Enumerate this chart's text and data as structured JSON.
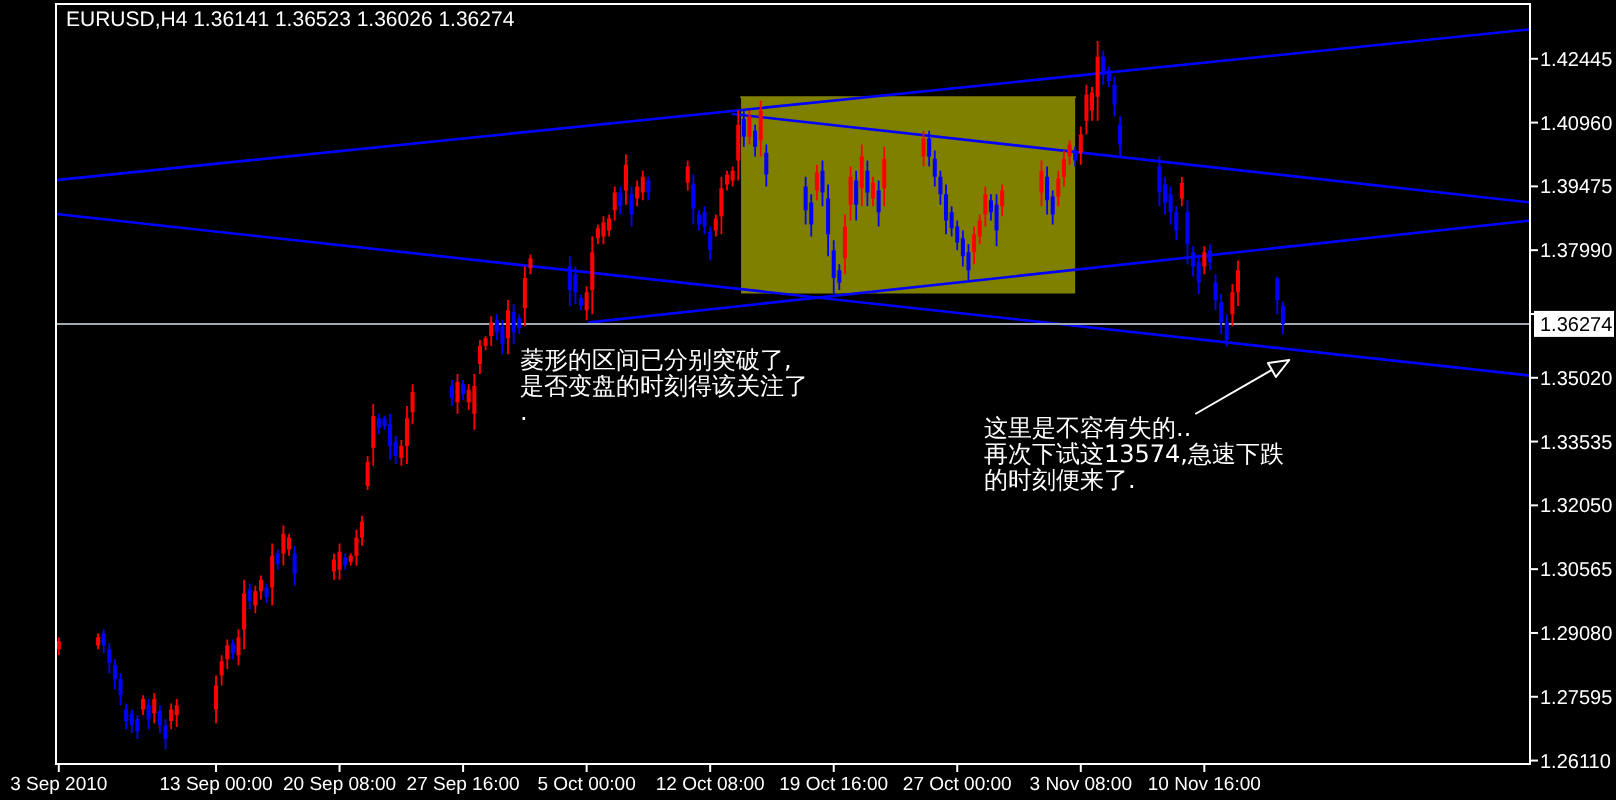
{
  "chart_data": {
    "type": "candlestick",
    "title": "EURUSD,H4 1.36141 1.36523 1.36026 1.36274",
    "xlim": [
      "2010-09-03T12:00",
      "2010-11-30T00:00"
    ],
    "ylim": [
      1.2603,
      1.4372
    ],
    "xticks": [
      {
        "value": "2010-09-03T16:00",
        "label": "3 Sep 2010"
      },
      {
        "value": "2010-09-13T00:00",
        "label": "13 Sep 00:00"
      },
      {
        "value": "2010-09-20T08:00",
        "label": "20 Sep 08:00"
      },
      {
        "value": "2010-09-27T16:00",
        "label": "27 Sep 16:00"
      },
      {
        "value": "2010-10-05T00:00",
        "label": "5 Oct 00:00"
      },
      {
        "value": "2010-10-12T08:00",
        "label": "12 Oct 08:00"
      },
      {
        "value": "2010-10-19T16:00",
        "label": "19 Oct 16:00"
      },
      {
        "value": "2010-10-27T00:00",
        "label": "27 Oct 00:00"
      },
      {
        "value": "2010-11-03T08:00",
        "label": "3 Nov 08:00"
      },
      {
        "value": "2010-11-10T16:00",
        "label": "10 Nov 16:00"
      }
    ],
    "yticks": [
      {
        "value": 1.2611,
        "label": "1.26110"
      },
      1.27595,
      {
        "value": 1.2908,
        "label": "1.29080"
      },
      1.30565,
      {
        "value": 1.3205,
        "label": "1.32050"
      },
      1.33535,
      {
        "value": 1.3502,
        "label": "1.35020"
      },
      {
        "value": 1.36505,
        "label": null
      },
      {
        "value": 1.3799,
        "label": "1.37990"
      },
      1.39475,
      {
        "value": 1.4096,
        "label": "1.40960"
      },
      1.42445
    ],
    "x": [
      "2010-09-03T16:00",
      "2010-09-06T00:00",
      "2010-09-06T08:00",
      "2010-09-06T16:00",
      "2010-09-07T00:00",
      "2010-09-07T08:00",
      "2010-09-07T16:00",
      "2010-09-08T00:00",
      "2010-09-08T08:00",
      "2010-09-08T16:00",
      "2010-09-09T00:00",
      "2010-09-09T08:00",
      "2010-09-09T16:00",
      "2010-09-10T00:00",
      "2010-09-10T08:00",
      "2010-09-10T16:00",
      "2010-09-13T00:00",
      "2010-09-13T08:00",
      "2010-09-13T16:00",
      "2010-09-14T00:00",
      "2010-09-14T08:00",
      "2010-09-14T16:00",
      "2010-09-15T00:00",
      "2010-09-15T08:00",
      "2010-09-15T16:00",
      "2010-09-16T00:00",
      "2010-09-16T08:00",
      "2010-09-16T16:00",
      "2010-09-17T00:00",
      "2010-09-17T08:00",
      "2010-09-17T16:00",
      "2010-09-20T00:00",
      "2010-09-20T08:00",
      "2010-09-20T16:00",
      "2010-09-21T00:00",
      "2010-09-21T08:00",
      "2010-09-21T16:00",
      "2010-09-22T00:00",
      "2010-09-22T08:00",
      "2010-09-22T16:00",
      "2010-09-23T00:00",
      "2010-09-23T08:00",
      "2010-09-23T16:00",
      "2010-09-24T00:00",
      "2010-09-24T08:00",
      "2010-09-24T16:00",
      "2010-09-27T00:00",
      "2010-09-27T08:00",
      "2010-09-27T16:00",
      "2010-09-28T00:00",
      "2010-09-28T08:00",
      "2010-09-28T16:00",
      "2010-09-29T00:00",
      "2010-09-29T08:00",
      "2010-09-29T16:00",
      "2010-09-30T00:00",
      "2010-09-30T08:00",
      "2010-09-30T16:00",
      "2010-10-01T00:00",
      "2010-10-01T08:00",
      "2010-10-01T16:00",
      "2010-10-04T00:00",
      "2010-10-04T08:00",
      "2010-10-04T16:00",
      "2010-10-05T00:00",
      "2010-10-05T08:00",
      "2010-10-05T16:00",
      "2010-10-06T00:00",
      "2010-10-06T08:00",
      "2010-10-06T16:00",
      "2010-10-07T00:00",
      "2010-10-07T08:00",
      "2010-10-07T16:00",
      "2010-10-08T00:00",
      "2010-10-08T08:00",
      "2010-10-08T16:00",
      "2010-10-11T00:00",
      "2010-10-11T08:00",
      "2010-10-11T16:00",
      "2010-10-12T00:00",
      "2010-10-12T08:00",
      "2010-10-12T16:00",
      "2010-10-13T00:00",
      "2010-10-13T08:00",
      "2010-10-13T16:00",
      "2010-10-14T00:00",
      "2010-10-14T08:00",
      "2010-10-14T16:00",
      "2010-10-15T00:00",
      "2010-10-15T08:00",
      "2010-10-15T16:00",
      "2010-10-18T00:00",
      "2010-10-18T08:00",
      "2010-10-18T16:00",
      "2010-10-19T00:00",
      "2010-10-19T08:00",
      "2010-10-19T16:00",
      "2010-10-20T00:00",
      "2010-10-20T08:00",
      "2010-10-20T16:00",
      "2010-10-21T00:00",
      "2010-10-21T08:00",
      "2010-10-21T16:00",
      "2010-10-22T00:00",
      "2010-10-22T08:00",
      "2010-10-22T16:00",
      "2010-10-25T00:00",
      "2010-10-25T08:00",
      "2010-10-25T16:00",
      "2010-10-26T00:00",
      "2010-10-26T08:00",
      "2010-10-26T16:00",
      "2010-10-27T00:00",
      "2010-10-27T08:00",
      "2010-10-27T16:00",
      "2010-10-28T00:00",
      "2010-10-28T08:00",
      "2010-10-28T16:00",
      "2010-10-29T00:00",
      "2010-10-29T08:00",
      "2010-10-29T16:00",
      "2010-11-01T00:00",
      "2010-11-01T08:00",
      "2010-11-01T16:00",
      "2010-11-02T00:00",
      "2010-11-02T08:00",
      "2010-11-02T16:00",
      "2010-11-03T00:00",
      "2010-11-03T08:00",
      "2010-11-03T16:00",
      "2010-11-04T00:00",
      "2010-11-04T08:00",
      "2010-11-04T16:00",
      "2010-11-05T00:00",
      "2010-11-05T08:00",
      "2010-11-05T16:00",
      "2010-11-08T00:00",
      "2010-11-08T08:00",
      "2010-11-08T16:00",
      "2010-11-09T00:00",
      "2010-11-09T08:00",
      "2010-11-09T16:00",
      "2010-11-10T00:00",
      "2010-11-10T08:00",
      "2010-11-10T16:00",
      "2010-11-11T00:00",
      "2010-11-11T08:00",
      "2010-11-11T16:00",
      "2010-11-12T00:00",
      "2010-11-12T08:00",
      "2010-11-12T16:00",
      "2010-11-15T00:00",
      "2010-11-15T08:00"
    ],
    "ohlc": [
      [
        1.287,
        1.2898,
        1.2856,
        1.2889
      ],
      [
        1.2879,
        1.2907,
        1.287,
        1.2898
      ],
      [
        1.2907,
        1.2916,
        1.2861,
        1.2879
      ],
      [
        1.287,
        1.2884,
        1.2814,
        1.2838
      ],
      [
        1.2833,
        1.2847,
        1.2777,
        1.28
      ],
      [
        1.28,
        1.2814,
        1.274,
        1.2763
      ],
      [
        1.273,
        1.2744,
        1.2684,
        1.2703
      ],
      [
        1.2721,
        1.273,
        1.2675,
        1.2693
      ],
      [
        1.2707,
        1.2717,
        1.2661,
        1.2679
      ],
      [
        1.273,
        1.2763,
        1.2717,
        1.2754
      ],
      [
        1.274,
        1.2754,
        1.2684,
        1.2707
      ],
      [
        1.2721,
        1.2768,
        1.2698,
        1.2754
      ],
      [
        1.2726,
        1.274,
        1.2675,
        1.2693
      ],
      [
        1.2693,
        1.2707,
        1.2637,
        1.2661
      ],
      [
        1.2703,
        1.2744,
        1.2684,
        1.273
      ],
      [
        1.2717,
        1.2754,
        1.2689,
        1.274
      ],
      [
        1.273,
        1.2809,
        1.2698,
        1.2786
      ],
      [
        1.2809,
        1.2856,
        1.2786,
        1.2842
      ],
      [
        1.2847,
        1.2893,
        1.2824,
        1.2879
      ],
      [
        1.2884,
        1.2893,
        1.2847,
        1.2861
      ],
      [
        1.2856,
        1.2916,
        1.2833,
        1.2898
      ],
      [
        1.2916,
        1.3032,
        1.287,
        1.3
      ],
      [
        1.3009,
        1.3023,
        1.2963,
        1.2982
      ],
      [
        1.2972,
        1.3018,
        1.2954,
        1.3005
      ],
      [
        1.3005,
        1.3042,
        1.2986,
        1.3032
      ],
      [
        1.3014,
        1.3023,
        1.2977,
        1.2991
      ],
      [
        1.3014,
        1.3116,
        1.2972,
        1.3088
      ],
      [
        1.3093,
        1.3102,
        1.3055,
        1.3069
      ],
      [
        1.3093,
        1.3158,
        1.3065,
        1.3139
      ],
      [
        1.3102,
        1.3139,
        1.3088,
        1.313
      ],
      [
        1.3093,
        1.3111,
        1.3018,
        1.3046
      ],
      [
        1.3051,
        1.3093,
        1.3032,
        1.3079
      ],
      [
        1.3055,
        1.3116,
        1.3032,
        1.3097
      ],
      [
        1.3083,
        1.3093,
        1.3055,
        1.3065
      ],
      [
        1.3074,
        1.3093,
        1.3065,
        1.3088
      ],
      [
        1.3088,
        1.3148,
        1.3065,
        1.313
      ],
      [
        1.313,
        1.3181,
        1.3111,
        1.3167
      ],
      [
        1.325,
        1.332,
        1.3241,
        1.3306
      ],
      [
        1.3339,
        1.3441,
        1.3297,
        1.3413
      ],
      [
        1.3408,
        1.3418,
        1.3371,
        1.3385
      ],
      [
        1.3408,
        1.3413,
        1.3381,
        1.339
      ],
      [
        1.3394,
        1.3418,
        1.3311,
        1.3343
      ],
      [
        1.3353,
        1.3367,
        1.3301,
        1.332
      ],
      [
        1.3315,
        1.3357,
        1.3297,
        1.3343
      ],
      [
        1.3343,
        1.3436,
        1.3301,
        1.3408
      ],
      [
        1.3422,
        1.3487,
        1.3394,
        1.3469
      ],
      [
        1.3483,
        1.3497,
        1.3436,
        1.3455
      ],
      [
        1.3445,
        1.3511,
        1.3418,
        1.3492
      ],
      [
        1.3487,
        1.3497,
        1.345,
        1.3464
      ],
      [
        1.3445,
        1.3487,
        1.3427,
        1.3474
      ],
      [
        1.3418,
        1.3511,
        1.3381,
        1.3483
      ],
      [
        1.3534,
        1.359,
        1.3511,
        1.3576
      ],
      [
        1.3576,
        1.3599,
        1.3566,
        1.3594
      ],
      [
        1.3599,
        1.3645,
        1.3576,
        1.3631
      ],
      [
        1.3636,
        1.365,
        1.359,
        1.3608
      ],
      [
        1.3622,
        1.3636,
        1.3557,
        1.358
      ],
      [
        1.3594,
        1.3683,
        1.3557,
        1.3659
      ],
      [
        1.3655,
        1.3673,
        1.358,
        1.3608
      ],
      [
        1.3641,
        1.365,
        1.3604,
        1.3618
      ],
      [
        1.3664,
        1.3761,
        1.3622,
        1.3734
      ],
      [
        1.3757,
        1.3789,
        1.3743,
        1.378
      ],
      [
        1.3761,
        1.3785,
        1.3669,
        1.3706
      ],
      [
        1.3743,
        1.3761,
        1.3673,
        1.3701
      ],
      [
        1.3687,
        1.3696,
        1.3659,
        1.3669
      ],
      [
        1.3659,
        1.3715,
        1.3636,
        1.3701
      ],
      [
        1.3706,
        1.3831,
        1.365,
        1.3794
      ],
      [
        1.3827,
        1.3859,
        1.3813,
        1.385
      ],
      [
        1.3831,
        1.3878,
        1.3813,
        1.3864
      ],
      [
        1.3845,
        1.3882,
        1.3831,
        1.3873
      ],
      [
        1.3892,
        1.3947,
        1.3868,
        1.3933
      ],
      [
        1.3933,
        1.3947,
        1.3882,
        1.3901
      ],
      [
        1.3938,
        1.4022,
        1.3905,
        1.3998
      ],
      [
        1.3929,
        1.3947,
        1.3854,
        1.3882
      ],
      [
        1.3919,
        1.3961,
        1.3901,
        1.3947
      ],
      [
        1.3933,
        1.3984,
        1.3915,
        1.397
      ],
      [
        1.3961,
        1.397,
        1.3915,
        1.3933
      ],
      [
        1.3956,
        1.4008,
        1.3938,
        1.3994
      ],
      [
        1.3952,
        1.3975,
        1.3859,
        1.3896
      ],
      [
        1.3882,
        1.3892,
        1.3845,
        1.3859
      ],
      [
        1.3887,
        1.3901,
        1.3836,
        1.3854
      ],
      [
        1.3841,
        1.3854,
        1.3775,
        1.3799
      ],
      [
        1.3845,
        1.3882,
        1.3831,
        1.3873
      ],
      [
        1.3878,
        1.397,
        1.3836,
        1.3943
      ],
      [
        1.3952,
        1.3984,
        1.3938,
        1.3975
      ],
      [
        1.3961,
        1.3994,
        1.3947,
        1.3984
      ],
      [
        1.4008,
        1.4124,
        1.3961,
        1.4091
      ],
      [
        1.4105,
        1.4124,
        1.404,
        1.4063
      ],
      [
        1.4063,
        1.4124,
        1.4045,
        1.411
      ],
      [
        1.4077,
        1.4091,
        1.4017,
        1.404
      ],
      [
        1.4054,
        1.4147,
        1.4017,
        1.4124
      ],
      [
        1.4026,
        1.4045,
        1.3947,
        1.3975
      ],
      [
        1.3947,
        1.397,
        1.3859,
        1.3892
      ],
      [
        1.391,
        1.3929,
        1.3831,
        1.3859
      ],
      [
        1.3938,
        1.3998,
        1.3915,
        1.398
      ],
      [
        1.3984,
        1.4008,
        1.3901,
        1.3933
      ],
      [
        1.3919,
        1.3952,
        1.3785,
        1.3836
      ],
      [
        1.3799,
        1.3822,
        1.3697,
        1.3734
      ],
      [
        1.3752,
        1.3766,
        1.3706,
        1.3724
      ],
      [
        1.378,
        1.3882,
        1.3743,
        1.3854
      ],
      [
        1.3905,
        1.3994,
        1.3868,
        1.397
      ],
      [
        1.3961,
        1.3984,
        1.3868,
        1.3905
      ],
      [
        1.3943,
        1.4045,
        1.3901,
        1.4017
      ],
      [
        1.3984,
        1.4008,
        1.3901,
        1.3933
      ],
      [
        1.3919,
        1.397,
        1.3901,
        1.3956
      ],
      [
        1.3938,
        1.3961,
        1.3854,
        1.3887
      ],
      [
        1.3943,
        1.404,
        1.3901,
        1.4012
      ],
      [
        1.4017,
        1.4077,
        1.3994,
        1.4059
      ],
      [
        1.4059,
        1.4077,
        1.3994,
        1.4017
      ],
      [
        1.4012,
        1.4031,
        1.3947,
        1.397
      ],
      [
        1.397,
        1.3984,
        1.3905,
        1.3929
      ],
      [
        1.3929,
        1.3952,
        1.3836,
        1.3868
      ],
      [
        1.3887,
        1.3901,
        1.3831,
        1.385
      ],
      [
        1.3854,
        1.3868,
        1.3799,
        1.3817
      ],
      [
        1.3827,
        1.3845,
        1.3761,
        1.3785
      ],
      [
        1.3794,
        1.3813,
        1.3729,
        1.3752
      ],
      [
        1.3794,
        1.3854,
        1.3766,
        1.3836
      ],
      [
        1.3831,
        1.3882,
        1.3813,
        1.3868
      ],
      [
        1.3882,
        1.3947,
        1.3854,
        1.3929
      ],
      [
        1.3915,
        1.3929,
        1.3868,
        1.3887
      ],
      [
        1.3905,
        1.3929,
        1.3808,
        1.3845
      ],
      [
        1.3901,
        1.3952,
        1.3878,
        1.3938
      ],
      [
        1.3933,
        1.4008,
        1.3901,
        1.3984
      ],
      [
        1.397,
        1.3994,
        1.3882,
        1.3915
      ],
      [
        1.3924,
        1.3938,
        1.3859,
        1.3882
      ],
      [
        1.3924,
        1.3984,
        1.3901,
        1.3966
      ],
      [
        1.397,
        1.4031,
        1.3947,
        1.4012
      ],
      [
        1.4017,
        1.4054,
        1.3998,
        1.4045
      ],
      [
        1.4031,
        1.404,
        1.3994,
        1.4008
      ],
      [
        1.4026,
        1.4087,
        1.3998,
        1.4068
      ],
      [
        1.41,
        1.4184,
        1.4068,
        1.4161
      ],
      [
        1.4124,
        1.4179,
        1.41,
        1.4166
      ],
      [
        1.4156,
        1.4286,
        1.41,
        1.4249
      ],
      [
        1.4249,
        1.4263,
        1.4184,
        1.4207
      ],
      [
        1.4217,
        1.4226,
        1.4179,
        1.4193
      ],
      [
        1.4184,
        1.4203,
        1.411,
        1.4138
      ],
      [
        1.4091,
        1.411,
        1.4017,
        1.4045
      ],
      [
        1.3994,
        1.4017,
        1.3901,
        1.3933
      ],
      [
        1.3952,
        1.397,
        1.3882,
        1.391
      ],
      [
        1.3929,
        1.3947,
        1.3859,
        1.3887
      ],
      [
        1.3887,
        1.3901,
        1.3822,
        1.3845
      ],
      [
        1.3919,
        1.397,
        1.3901,
        1.3956
      ],
      [
        1.3887,
        1.3915,
        1.3766,
        1.3813
      ],
      [
        1.3794,
        1.3808,
        1.3738,
        1.3761
      ],
      [
        1.3771,
        1.3789,
        1.3697,
        1.3724
      ],
      [
        1.3761,
        1.3808,
        1.3743,
        1.3794
      ],
      [
        1.3799,
        1.3813,
        1.3752,
        1.3771
      ],
      [
        1.3724,
        1.3743,
        1.3659,
        1.3683
      ],
      [
        1.3678,
        1.3697,
        1.3604,
        1.3631
      ],
      [
        1.3631,
        1.365,
        1.3575,
        1.359
      ],
      [
        1.365,
        1.372,
        1.3622,
        1.3701
      ],
      [
        1.3701,
        1.3775,
        1.3669,
        1.3752
      ],
      [
        1.3733,
        1.3738,
        1.365,
        1.3683
      ],
      [
        1.3669,
        1.3679,
        1.3603,
        1.3627
      ]
    ],
    "colors": [
      "#ff0000",
      "#ff0000",
      "#0000ff",
      "#0000ff",
      "#0000ff",
      "#0000ff",
      "#0000ff",
      "#0000ff",
      "#0000ff",
      "#ff0000",
      "#0000ff",
      "#ff0000",
      "#0000ff",
      "#0000ff",
      "#ff0000",
      "#ff0000",
      "#ff0000",
      "#ff0000",
      "#ff0000",
      "#0000ff",
      "#ff0000",
      "#ff0000",
      "#0000ff",
      "#ff0000",
      "#ff0000",
      "#0000ff",
      "#ff0000",
      "#0000ff",
      "#ff0000",
      "#ff0000",
      "#0000ff",
      "#ff0000",
      "#ff0000",
      "#0000ff",
      "#ff0000",
      "#ff0000",
      "#ff0000",
      "#ff0000",
      "#ff0000",
      "#0000ff",
      "#0000ff",
      "#0000ff",
      "#0000ff",
      "#ff0000",
      "#ff0000",
      "#ff0000",
      "#0000ff",
      "#ff0000",
      "#0000ff",
      "#ff0000",
      "#ff0000",
      "#ff0000",
      "#ff0000",
      "#ff0000",
      "#0000ff",
      "#0000ff",
      "#ff0000",
      "#0000ff",
      "#0000ff",
      "#ff0000",
      "#ff0000",
      "#0000ff",
      "#0000ff",
      "#0000ff",
      "#ff0000",
      "#ff0000",
      "#ff0000",
      "#ff0000",
      "#ff0000",
      "#ff0000",
      "#0000ff",
      "#ff0000",
      "#0000ff",
      "#ff0000",
      "#ff0000",
      "#0000ff",
      "#ff0000",
      "#0000ff",
      "#0000ff",
      "#0000ff",
      "#0000ff",
      "#ff0000",
      "#ff0000",
      "#ff0000",
      "#ff0000",
      "#ff0000",
      "#0000ff",
      "#ff0000",
      "#0000ff",
      "#ff0000",
      "#0000ff",
      "#0000ff",
      "#0000ff",
      "#ff0000",
      "#0000ff",
      "#0000ff",
      "#0000ff",
      "#0000ff",
      "#ff0000",
      "#ff0000",
      "#0000ff",
      "#ff0000",
      "#0000ff",
      "#ff0000",
      "#0000ff",
      "#ff0000",
      "#ff0000",
      "#0000ff",
      "#0000ff",
      "#0000ff",
      "#0000ff",
      "#0000ff",
      "#0000ff",
      "#0000ff",
      "#0000ff",
      "#ff0000",
      "#ff0000",
      "#ff0000",
      "#0000ff",
      "#0000ff",
      "#ff0000",
      "#ff0000",
      "#0000ff",
      "#0000ff",
      "#ff0000",
      "#ff0000",
      "#ff0000",
      "#0000ff",
      "#ff0000",
      "#ff0000",
      "#ff0000",
      "#ff0000",
      "#0000ff",
      "#0000ff",
      "#0000ff",
      "#0000ff",
      "#0000ff",
      "#0000ff",
      "#0000ff",
      "#0000ff",
      "#ff0000",
      "#0000ff",
      "#0000ff",
      "#0000ff",
      "#ff0000",
      "#0000ff",
      "#0000ff",
      "#0000ff",
      "#0000ff",
      "#ff0000",
      "#ff0000",
      "#0000ff",
      "#0000ff"
    ],
    "series": [
      {
        "type": "line",
        "color": "#808000",
        "x": [
          "2010-10-14T04:00",
          "2010-11-03T00:00"
        ],
        "values": [
          1.4155,
          1.4155
        ],
        "upper": [
          1.4155,
          1.4155
        ],
        "lower": [
          1.3698,
          1.3698
        ]
      },
      {
        "type": "line",
        "color": "#0000ff",
        "x": [
          "2010-09-03T12:00",
          "2010-11-30T00:00"
        ],
        "values": [
          1.3962,
          1.4313
        ]
      },
      {
        "type": "line",
        "color": "#0000ff",
        "x": [
          "2010-09-03T12:00",
          "2010-11-30T00:00"
        ],
        "values": [
          1.3883,
          1.3507
        ]
      },
      {
        "type": "line",
        "color": "#0000ff",
        "x": [
          "2010-10-13T16:00",
          "2010-11-30T00:00"
        ],
        "values": [
          1.4116,
          1.391
        ]
      },
      {
        "type": "line",
        "color": "#0000ff",
        "x": [
          "2010-10-05T04:00",
          "2010-11-30T00:00"
        ],
        "values": [
          1.3631,
          1.3868
        ]
      }
    ],
    "ref_lines": [
      {
        "axis": "y",
        "value": 1.36274,
        "label": "1.36274",
        "color": "#a0a8b4"
      }
    ],
    "annotations": [
      "菱形的区间已分别突破了,是否变盘的时刻得该关注了.",
      "这里是不容有失的..",
      "再次下试这13574,急速下跌的时刻便来了."
    ]
  }
}
